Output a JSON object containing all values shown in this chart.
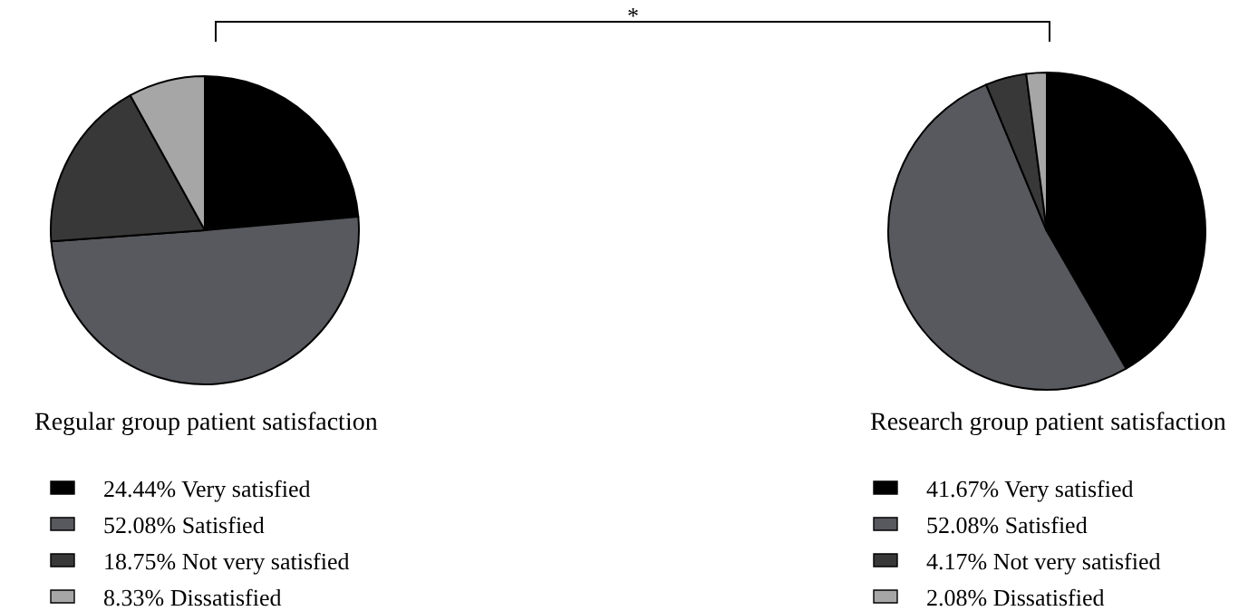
{
  "chart_data": [
    {
      "type": "pie",
      "title": "Regular group patient satisfaction",
      "categories": [
        "Very satisfied",
        "Satisfied",
        "Not very satisfied",
        "Dissatisfied"
      ],
      "values": [
        24.44,
        52.08,
        18.75,
        8.33
      ],
      "value_labels": [
        "24.44%",
        "52.08%",
        "18.75%",
        "8.33%"
      ],
      "colors": [
        "#000000",
        "#58595e",
        "#383838",
        "#a6a6a6"
      ],
      "legend": "bottom",
      "annotations": [
        "*"
      ]
    },
    {
      "type": "pie",
      "title": "Research group patient satisfaction",
      "categories": [
        "Very satisfied",
        "Satisfied",
        "Not very satisfied",
        "Dissatisfied"
      ],
      "values": [
        41.67,
        52.08,
        4.17,
        2.08
      ],
      "value_labels": [
        "41.67%",
        "52.08%",
        "4.17%",
        "2.08%"
      ],
      "colors": [
        "#000000",
        "#58595e",
        "#383838",
        "#a6a6a6"
      ],
      "legend": "bottom"
    }
  ]
}
